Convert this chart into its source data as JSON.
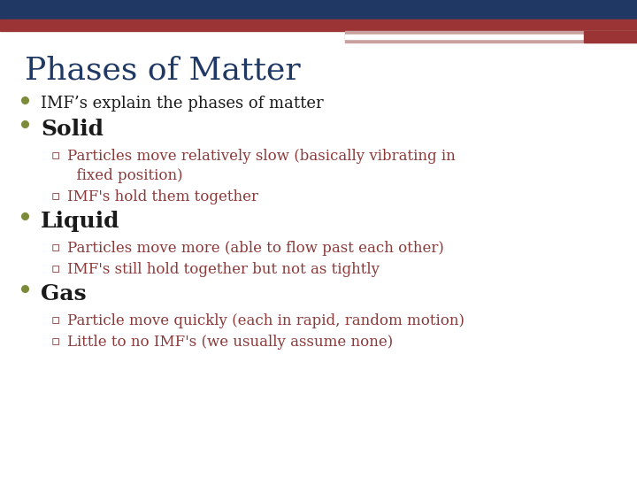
{
  "title": "Phases of Matter",
  "title_color": "#1F3864",
  "title_fontsize": 26,
  "bg_color": "#FFFFFF",
  "header_bar_color": "#1F3864",
  "header_bar2_color": "#9B3535",
  "header_bar3_color": "#C9A0A0",
  "bullet_color": "#7B8B3A",
  "sub_bullet_color": "#8B3A3A",
  "main_text_color": "#1a1a1a",
  "main_bullet_fontsize": 13,
  "bold_bullet_fontsize": 18,
  "sub_bullet_fontsize": 12,
  "content": [
    {
      "type": "bullet",
      "text": "IMF’s explain the phases of matter",
      "bold": false
    },
    {
      "type": "bullet",
      "text": "Solid",
      "bold": true
    },
    {
      "type": "subbullet",
      "lines": [
        "Particles move relatively slow (basically vibrating in",
        "  fixed position)"
      ]
    },
    {
      "type": "subbullet",
      "lines": [
        "IMF's hold them together"
      ]
    },
    {
      "type": "bullet",
      "text": "Liquid",
      "bold": true
    },
    {
      "type": "subbullet",
      "lines": [
        "Particles move more (able to flow past each other)"
      ]
    },
    {
      "type": "subbullet",
      "lines": [
        "IMF's still hold together but not as tightly"
      ]
    },
    {
      "type": "bullet",
      "text": "Gas",
      "bold": true
    },
    {
      "type": "subbullet",
      "lines": [
        "Particle move quickly (each in rapid, random motion)"
      ]
    },
    {
      "type": "subbullet",
      "lines": [
        "Little to no IMF's (we usually assume none)"
      ]
    }
  ]
}
